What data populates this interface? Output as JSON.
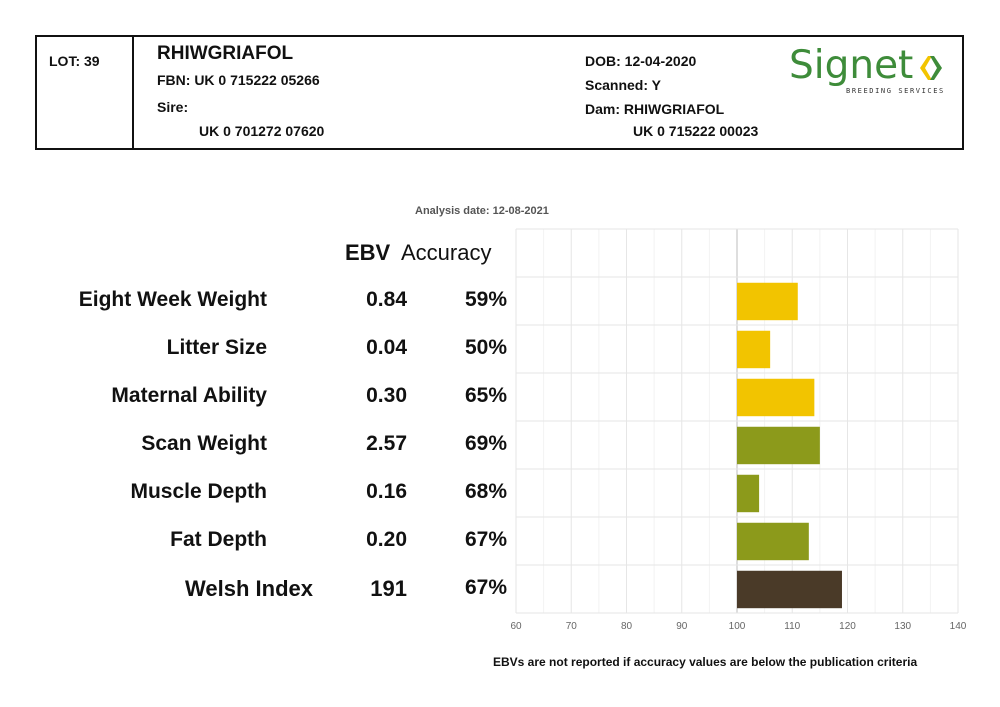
{
  "header": {
    "lot": "LOT: 39",
    "name": "RHIWGRIAFOL",
    "fbn": "FBN: UK 0 715222 05266",
    "sire_label": "Sire:",
    "sire_id": "UK 0 701272 07620",
    "dob": "DOB: 12-04-2020",
    "scanned": "Scanned: Y",
    "dam": "Dam: RHIWGRIAFOL",
    "dam_id": "UK 0 715222 00023"
  },
  "logo": {
    "word": "Signet",
    "sub": "BREEDING SERVICES",
    "colors": {
      "green": "#3e8c3a",
      "yellow": "#f2c400"
    }
  },
  "analysis_date": "Analysis date: 12-08-2021",
  "columns": {
    "ebv": "EBV",
    "accuracy": "Accuracy"
  },
  "footnote": "EBVs are not reported if accuracy values are below the publication criteria",
  "chart_data": {
    "type": "bar",
    "orientation": "horizontal",
    "categories": [
      "Eight Week Weight",
      "Litter Size",
      "Maternal Ability",
      "Scan Weight",
      "Muscle Depth",
      "Fat Depth",
      "Welsh Index"
    ],
    "ebv": [
      "0.84",
      "0.04",
      "0.30",
      "2.57",
      "0.16",
      "0.20",
      "191"
    ],
    "accuracy": [
      "59%",
      "50%",
      "65%",
      "69%",
      "68%",
      "67%",
      "67%"
    ],
    "values": [
      111,
      106,
      114,
      115,
      104,
      113,
      119
    ],
    "baseline": 100,
    "xlim": [
      60,
      140
    ],
    "xticks": [
      "60",
      "70",
      "80",
      "90",
      "100",
      "110",
      "120",
      "130",
      "140"
    ],
    "bar_colors": [
      "#f2c400",
      "#f2c400",
      "#f2c400",
      "#8c9a1b",
      "#8c9a1b",
      "#8c9a1b",
      "#4a3a28"
    ],
    "grid": true
  }
}
